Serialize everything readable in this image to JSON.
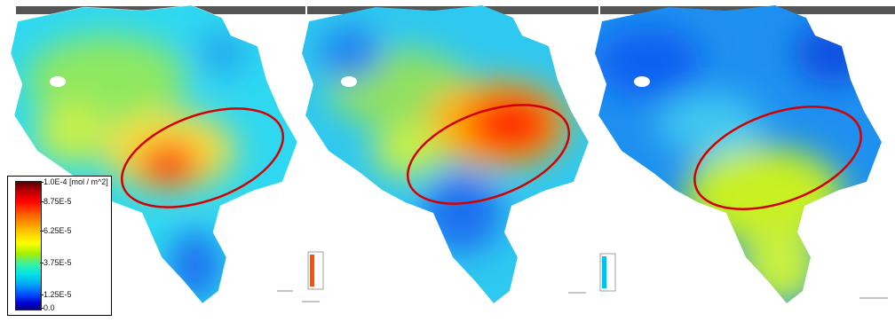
{
  "legend": {
    "labels": [
      "1.0E-4 [mol / m^2]",
      "8.75E-5",
      "6.25E-5",
      "3.75E-5",
      "1.25E-5",
      "0.0"
    ],
    "gradient": [
      "#5a0000",
      "#ff0000",
      "#ff6a00",
      "#ffff00",
      "#3ff0a0",
      "#00e6e6",
      "#0050ff",
      "#000078"
    ]
  },
  "panels": [
    {
      "hotspot_color": "#ff3000",
      "base_color": "#2fd8f0"
    },
    {
      "hotspot_color": "#ff2800",
      "base_color": "#2fc8f0"
    },
    {
      "hotspot_color": "#c8f020",
      "base_color": "#1e90f0"
    }
  ],
  "ellipse_color": "#d40000"
}
